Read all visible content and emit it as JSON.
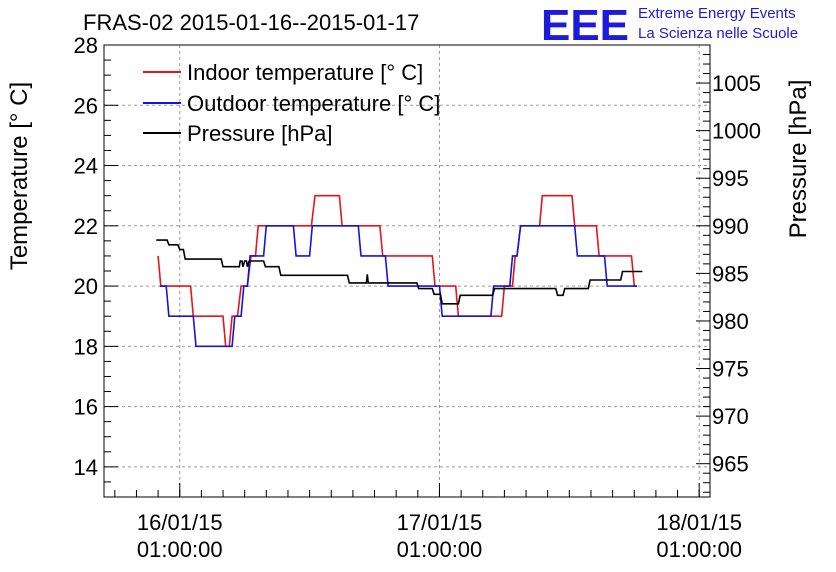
{
  "chart_data": {
    "type": "line",
    "title": "FRAS-02 2015-01-16--2015-01-17",
    "ylabel": "Temperature [° C]",
    "y2label": "Pressure [hPa]",
    "xlabel": "",
    "xlim": [
      "2015-01-15 18:00:00",
      "2015-01-18 02:00:00"
    ],
    "ylim": [
      13,
      28
    ],
    "y2lim": [
      961.5,
      1009.0
    ],
    "grid": true,
    "legend_position": "top-left",
    "x_ticks": [
      {
        "x": "2015-01-16 01:00:00",
        "date": "16/01/15",
        "time": "01:00:00"
      },
      {
        "x": "2015-01-17 01:00:00",
        "date": "17/01/15",
        "time": "01:00:00"
      },
      {
        "x": "2015-01-18 01:00:00",
        "date": "18/01/15",
        "time": "01:00:00"
      }
    ],
    "y_ticks": [
      "14",
      "16",
      "18",
      "20",
      "22",
      "24",
      "26",
      "28"
    ],
    "y2_ticks": [
      "965",
      "970",
      "975",
      "980",
      "985",
      "990",
      "995",
      "1000",
      "1005"
    ],
    "series": [
      {
        "name": "Indoor temperature [° C]",
        "color": "#e8141c",
        "axis": "left",
        "points": [
          [
            "2015-01-15 23:00",
            21
          ],
          [
            "2015-01-15 23:15",
            20
          ],
          [
            "2015-01-16 02:00",
            20
          ],
          [
            "2015-01-16 02:15",
            19
          ],
          [
            "2015-01-16 05:00",
            19
          ],
          [
            "2015-01-16 05:15",
            18
          ],
          [
            "2015-01-16 05:35",
            18
          ],
          [
            "2015-01-16 05:50",
            19
          ],
          [
            "2015-01-16 06:20",
            19
          ],
          [
            "2015-01-16 06:40",
            20
          ],
          [
            "2015-01-16 07:15",
            20
          ],
          [
            "2015-01-16 07:35",
            21
          ],
          [
            "2015-01-16 08:00",
            21
          ],
          [
            "2015-01-16 08:15",
            22
          ],
          [
            "2015-01-16 13:10",
            22
          ],
          [
            "2015-01-16 13:30",
            23
          ],
          [
            "2015-01-16 15:45",
            23
          ],
          [
            "2015-01-16 16:00",
            22
          ],
          [
            "2015-01-16 19:30",
            22
          ],
          [
            "2015-01-16 19:45",
            21
          ],
          [
            "2015-01-17 00:20",
            21
          ],
          [
            "2015-01-17 00:35",
            20
          ],
          [
            "2015-01-17 02:30",
            20
          ],
          [
            "2015-01-17 02:45",
            19
          ],
          [
            "2015-01-17 06:45",
            19
          ],
          [
            "2015-01-17 07:00",
            20
          ],
          [
            "2015-01-17 07:45",
            20
          ],
          [
            "2015-01-17 08:00",
            21
          ],
          [
            "2015-01-17 08:10",
            21
          ],
          [
            "2015-01-17 08:30",
            22
          ],
          [
            "2015-01-17 10:15",
            22
          ],
          [
            "2015-01-17 10:30",
            23
          ],
          [
            "2015-01-17 13:15",
            23
          ],
          [
            "2015-01-17 13:30",
            22
          ],
          [
            "2015-01-17 15:30",
            22
          ],
          [
            "2015-01-17 15:45",
            21
          ],
          [
            "2015-01-17 18:45",
            21
          ],
          [
            "2015-01-17 19:00",
            20
          ],
          [
            "2015-01-17 19:15",
            20
          ]
        ]
      },
      {
        "name": "Outdoor temperature [° C]",
        "color": "#1414e0",
        "axis": "left",
        "points": [
          [
            "2015-01-15 23:10",
            20
          ],
          [
            "2015-01-15 23:45",
            20
          ],
          [
            "2015-01-16 00:00",
            19
          ],
          [
            "2015-01-16 02:15",
            19
          ],
          [
            "2015-01-16 02:30",
            18
          ],
          [
            "2015-01-16 05:50",
            18
          ],
          [
            "2015-01-16 06:05",
            19
          ],
          [
            "2015-01-16 06:40",
            19
          ],
          [
            "2015-01-16 06:55",
            20
          ],
          [
            "2015-01-16 07:15",
            20
          ],
          [
            "2015-01-16 07:30",
            21
          ],
          [
            "2015-01-16 08:45",
            21
          ],
          [
            "2015-01-16 09:00",
            22
          ],
          [
            "2015-01-16 11:30",
            22
          ],
          [
            "2015-01-16 11:45",
            21
          ],
          [
            "2015-01-16 13:00",
            21
          ],
          [
            "2015-01-16 13:15",
            22
          ],
          [
            "2015-01-16 17:30",
            22
          ],
          [
            "2015-01-16 17:45",
            21
          ],
          [
            "2015-01-16 20:00",
            21
          ],
          [
            "2015-01-16 20:15",
            20
          ],
          [
            "2015-01-17 01:00",
            20
          ],
          [
            "2015-01-17 01:15",
            19
          ],
          [
            "2015-01-17 05:45",
            19
          ],
          [
            "2015-01-17 06:00",
            20
          ],
          [
            "2015-01-17 07:30",
            20
          ],
          [
            "2015-01-17 07:45",
            21
          ],
          [
            "2015-01-17 08:10",
            21
          ],
          [
            "2015-01-17 08:30",
            22
          ],
          [
            "2015-01-17 13:30",
            22
          ],
          [
            "2015-01-17 13:45",
            21
          ],
          [
            "2015-01-17 16:15",
            21
          ],
          [
            "2015-01-17 16:30",
            20
          ],
          [
            "2015-01-17 19:15",
            20
          ]
        ]
      },
      {
        "name": "Pressure [hPa]",
        "color": "#000000",
        "axis": "right",
        "points": [
          [
            "2015-01-15 22:50",
            988.5
          ],
          [
            "2015-01-15 23:50",
            988.5
          ],
          [
            "2015-01-16 00:00",
            988
          ],
          [
            "2015-01-16 00:50",
            988
          ],
          [
            "2015-01-16 01:00",
            987.5
          ],
          [
            "2015-01-16 01:20",
            987.5
          ],
          [
            "2015-01-16 01:30",
            986.5
          ],
          [
            "2015-01-16 04:50",
            986.5
          ],
          [
            "2015-01-16 05:00",
            985.7
          ],
          [
            "2015-01-16 06:30",
            985.7
          ],
          [
            "2015-01-16 06:35",
            986.3
          ],
          [
            "2015-01-16 06:45",
            986.3
          ],
          [
            "2015-01-16 06:50",
            985.7
          ],
          [
            "2015-01-16 07:00",
            986.3
          ],
          [
            "2015-01-16 07:10",
            986.3
          ],
          [
            "2015-01-16 07:15",
            985.7
          ],
          [
            "2015-01-16 07:25",
            986.3
          ],
          [
            "2015-01-16 08:45",
            986.3
          ],
          [
            "2015-01-16 08:55",
            985.7
          ],
          [
            "2015-01-16 10:10",
            985.7
          ],
          [
            "2015-01-16 10:20",
            984.8
          ],
          [
            "2015-01-16 16:30",
            984.8
          ],
          [
            "2015-01-16 16:40",
            984
          ],
          [
            "2015-01-16 18:15",
            984
          ],
          [
            "2015-01-16 18:20",
            984.9
          ],
          [
            "2015-01-16 18:25",
            984
          ],
          [
            "2015-01-16 22:55",
            984
          ],
          [
            "2015-01-16 23:05",
            983.4
          ],
          [
            "2015-01-17 00:20",
            983.4
          ],
          [
            "2015-01-17 00:30",
            982.8
          ],
          [
            "2015-01-17 01:05",
            982.8
          ],
          [
            "2015-01-17 01:15",
            981.8
          ],
          [
            "2015-01-17 02:45",
            981.8
          ],
          [
            "2015-01-17 02:55",
            982.7
          ],
          [
            "2015-01-17 05:55",
            982.7
          ],
          [
            "2015-01-17 06:05",
            983.4
          ],
          [
            "2015-01-17 11:45",
            983.4
          ],
          [
            "2015-01-17 11:55",
            982.7
          ],
          [
            "2015-01-17 12:25",
            982.7
          ],
          [
            "2015-01-17 12:35",
            983.4
          ],
          [
            "2015-01-17 14:45",
            983.4
          ],
          [
            "2015-01-17 14:55",
            984.3
          ],
          [
            "2015-01-17 17:45",
            984.3
          ],
          [
            "2015-01-17 17:55",
            985.2
          ],
          [
            "2015-01-17 19:45",
            985.2
          ]
        ]
      }
    ]
  },
  "logo": {
    "mark": "EEE",
    "line1": "Extreme Energy Events",
    "line2": "La Scienza nelle Scuole",
    "color": "#1b1bd9"
  }
}
